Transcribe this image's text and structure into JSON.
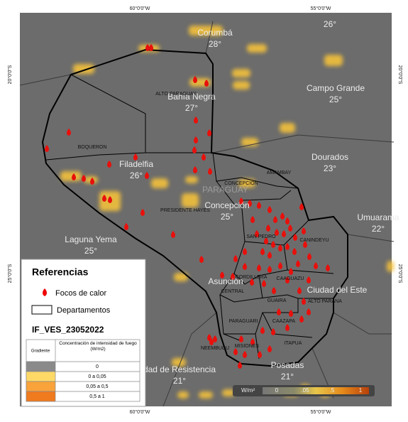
{
  "coordinates": {
    "top": [
      "60°0'0\"W",
      "55°0'0\"W"
    ],
    "bottom": [
      "60°0'0\"W",
      "55°0'0\"W"
    ],
    "left": [
      "20°0'0\"S",
      "25°0'0\"S"
    ],
    "right": [
      "20°0'0\"S",
      "25°0'0\"S"
    ]
  },
  "country": "PARAGUAY",
  "cities": [
    {
      "name": "Corumbá",
      "temp": "28°"
    },
    {
      "temp": "26°"
    },
    {
      "name": "Bahía Negra",
      "temp": "27°"
    },
    {
      "name": "Campo Grande",
      "temp": "25°"
    },
    {
      "name": "Filadelfia",
      "temp": "26°"
    },
    {
      "name": "Dourados",
      "temp": "23°"
    },
    {
      "name": "Concepción",
      "temp": "25°"
    },
    {
      "name": "Umuarama",
      "temp": "22°"
    },
    {
      "name": "Laguna Yema",
      "temp": "25°"
    },
    {
      "name": "Asunción"
    },
    {
      "name": "Ciudad del Este"
    },
    {
      "name": "dad de Resistencia",
      "temp": "21°"
    },
    {
      "name": "Posadas",
      "temp": "21°"
    }
  ],
  "departments": [
    "ALTO PARAGUAY",
    "BOQUERON",
    "PRESIDENTE HAYES",
    "CONCEPCION",
    "AMAMBAY",
    "SAN PEDRO",
    "CANINDEYU",
    "CORDILLERA",
    "CAAGUAZU",
    "CENTRAL",
    "GUAIRA",
    "ALTO PARANA",
    "PARAGUARI",
    "CAAZAPA",
    "ITAPUA",
    "NEEMBUCU",
    "MISIONES"
  ],
  "legend": {
    "title": "Referencias",
    "items": [
      "Focos de calor",
      "Departamentos"
    ],
    "product": "IF_VES_23052022",
    "table": {
      "headers": [
        "Gradiente",
        "Concentración de intensidad de fuego (W/m2)"
      ],
      "rows": [
        "0",
        "0 a 0,05",
        "0,05 a 0,5",
        "0,5 a 1"
      ]
    }
  },
  "colorbar": {
    "unit": "W/m²",
    "labels": [
      "0",
      ".05",
      ".5",
      "1"
    ]
  }
}
